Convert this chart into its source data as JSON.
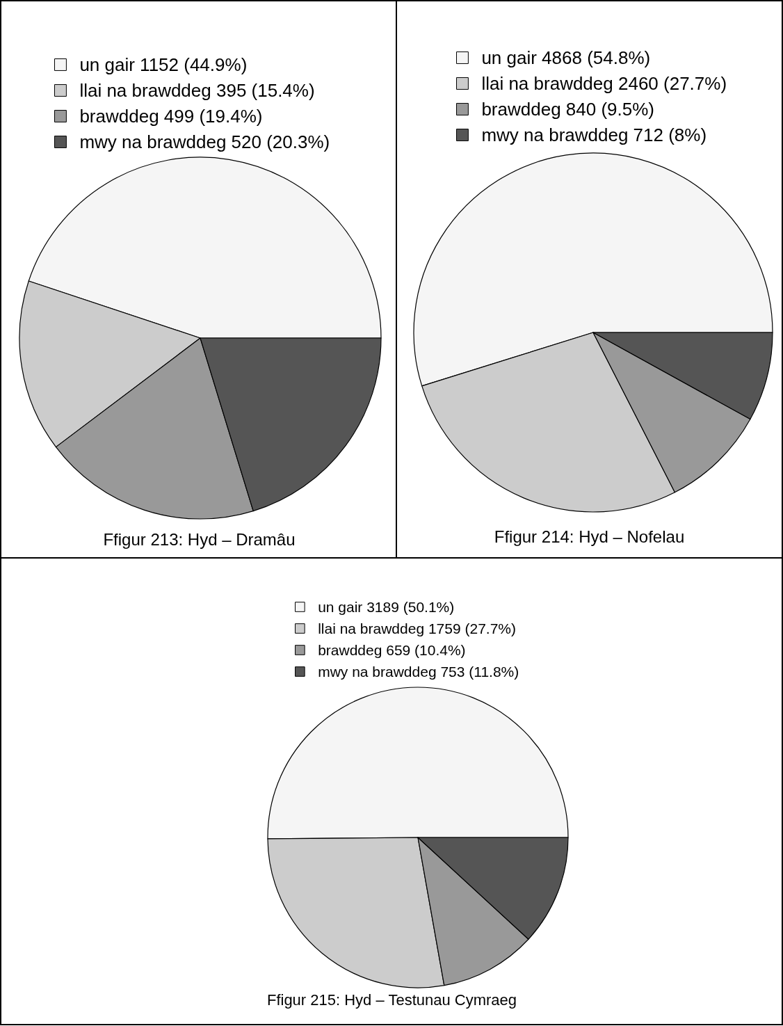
{
  "chart_data": [
    {
      "type": "pie",
      "title": "Ffigur 213: Hyd – Dramâu",
      "categories": [
        "un gair 1152 (44.9%)",
        "llai na brawddeg 395 (15.4%)",
        "brawddeg 499 (19.4%)",
        "mwy na brawddeg 520 (20.3%)"
      ],
      "values": [
        1152,
        395,
        499,
        520
      ],
      "colors": [
        "#f5f5f5",
        "#cccccc",
        "#999999",
        "#555555"
      ],
      "legend": "top"
    },
    {
      "type": "pie",
      "title": "Ffigur 214: Hyd – Nofelau",
      "categories": [
        "un gair 4868 (54.8%)",
        "llai na brawddeg 2460 (27.7%)",
        "brawddeg 840 (9.5%)",
        "mwy na brawddeg 712 (8%)"
      ],
      "values": [
        4868,
        2460,
        840,
        712
      ],
      "colors": [
        "#f5f5f5",
        "#cccccc",
        "#999999",
        "#555555"
      ],
      "legend": "top"
    },
    {
      "type": "pie",
      "title": "Ffigur 215: Hyd – Testunau Cymraeg",
      "categories": [
        "un gair 3189 (50.1%)",
        "llai na brawddeg 1759 (27.7%)",
        "brawddeg 659 (10.4%)",
        "mwy na brawddeg 753 (11.8%)"
      ],
      "values": [
        3189,
        1759,
        659,
        753
      ],
      "colors": [
        "#f5f5f5",
        "#cccccc",
        "#999999",
        "#555555"
      ],
      "legend": "top"
    }
  ]
}
